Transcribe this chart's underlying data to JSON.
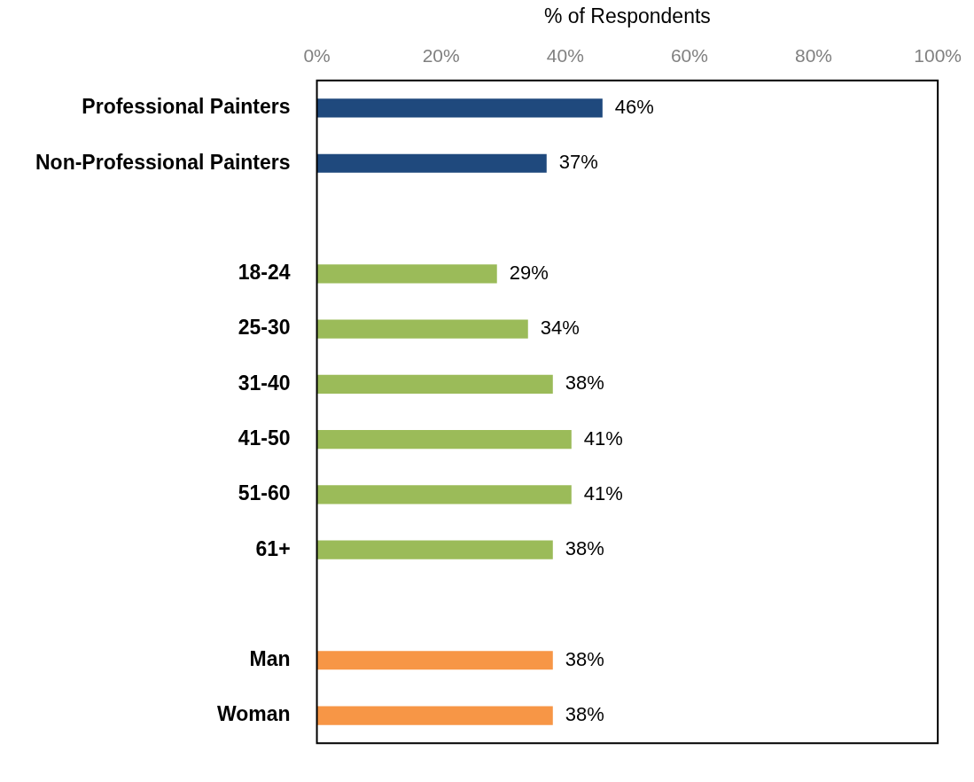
{
  "chart_data": {
    "type": "bar",
    "orientation": "horizontal",
    "xlabel": "% of Respondents",
    "categories": [
      "Professional Painters",
      "Non-Professional Painters",
      null,
      "18-24",
      "25-30",
      "31-40",
      "41-50",
      "51-60",
      "61+",
      null,
      "Man",
      "Woman"
    ],
    "values": [
      46,
      37,
      null,
      29,
      34,
      38,
      41,
      41,
      38,
      null,
      38,
      38
    ],
    "colors": [
      "#1f497d",
      "#1f497d",
      null,
      "#9bbb59",
      "#9bbb59",
      "#9bbb59",
      "#9bbb59",
      "#9bbb59",
      "#9bbb59",
      null,
      "#f79646",
      "#f79646"
    ],
    "value_labels": [
      "46%",
      "37%",
      null,
      "29%",
      "34%",
      "38%",
      "41%",
      "41%",
      "38%",
      null,
      "38%",
      "38%"
    ],
    "xlim": [
      0,
      100
    ],
    "xticks": [
      {
        "value": 0,
        "label": "0%"
      },
      {
        "value": 20,
        "label": "20%"
      },
      {
        "value": 40,
        "label": "40%"
      },
      {
        "value": 60,
        "label": "60%"
      },
      {
        "value": 80,
        "label": "80%"
      },
      {
        "value": 100,
        "label": "100%"
      }
    ],
    "grid": false,
    "legend": false
  }
}
